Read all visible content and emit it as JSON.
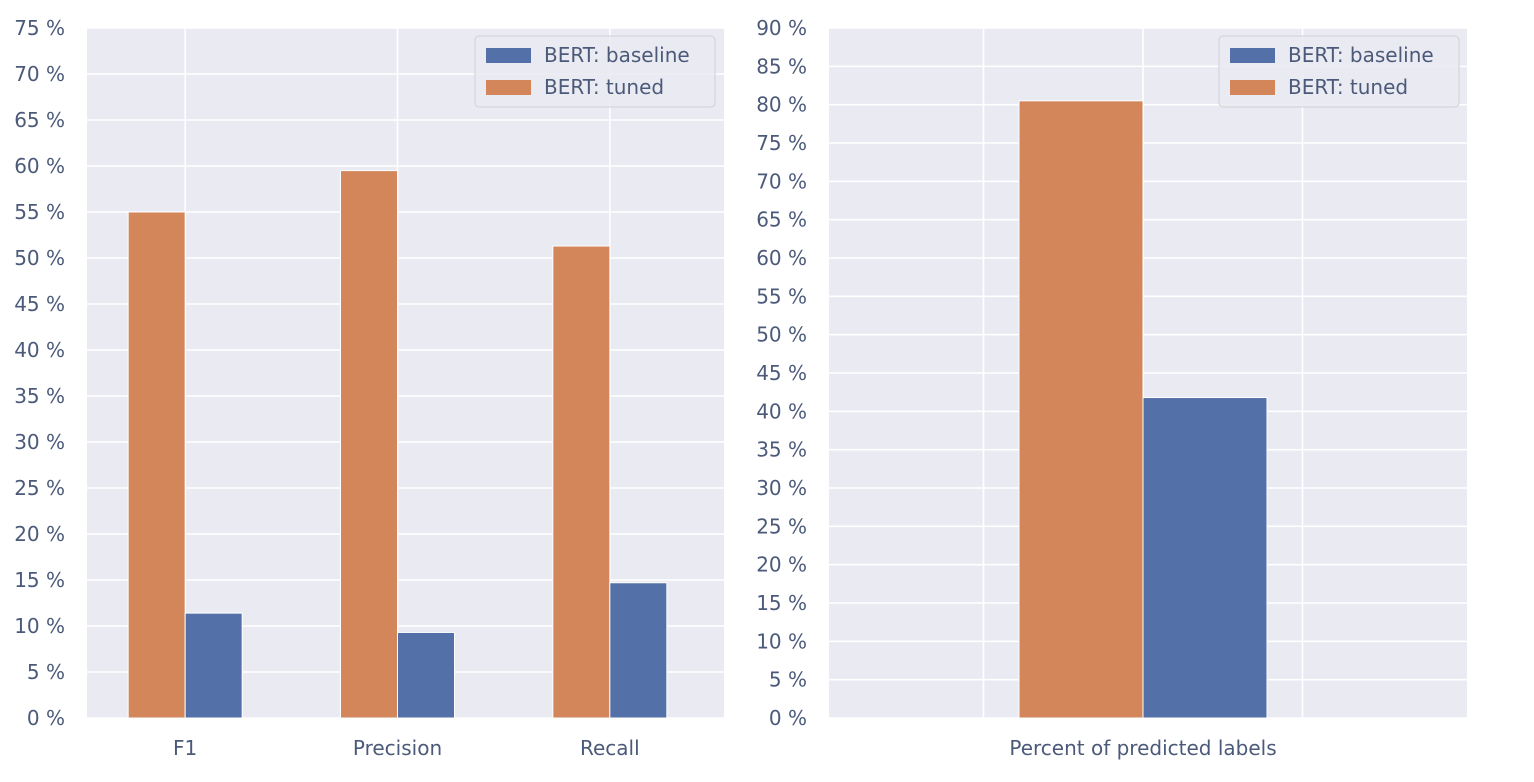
{
  "colors": {
    "baseline": "#5470a8",
    "tuned": "#d2865a",
    "plot_bg": "#eaeaf2",
    "grid": "#ffffff",
    "tick_text": "#4c5a7a"
  },
  "chart_data": [
    {
      "type": "bar",
      "categories": [
        "F1",
        "Precision",
        "Recall"
      ],
      "series": [
        {
          "name": "BERT: tuned",
          "values": [
            55.0,
            59.5,
            51.3
          ]
        },
        {
          "name": "BERT: baseline",
          "values": [
            11.4,
            9.3,
            14.7
          ]
        }
      ],
      "ylim": [
        0,
        75
      ],
      "yticks": [
        0,
        5,
        10,
        15,
        20,
        25,
        30,
        35,
        40,
        45,
        50,
        55,
        60,
        65,
        70,
        75
      ],
      "ytick_suffix": " %",
      "legend": {
        "placement": "top-right",
        "entries": [
          "BERT: baseline",
          "BERT: tuned"
        ]
      },
      "grid": true
    },
    {
      "type": "bar",
      "categories": [
        "Percent of predicted labels"
      ],
      "series": [
        {
          "name": "BERT: tuned",
          "values": [
            80.5
          ]
        },
        {
          "name": "BERT: baseline",
          "values": [
            41.8
          ]
        }
      ],
      "ylim": [
        0,
        90
      ],
      "yticks": [
        0,
        5,
        10,
        15,
        20,
        25,
        30,
        35,
        40,
        45,
        50,
        55,
        60,
        65,
        70,
        75,
        80,
        85,
        90
      ],
      "ytick_suffix": " %",
      "legend": {
        "placement": "top-right",
        "entries": [
          "BERT: baseline",
          "BERT: tuned"
        ]
      },
      "grid": true
    }
  ]
}
